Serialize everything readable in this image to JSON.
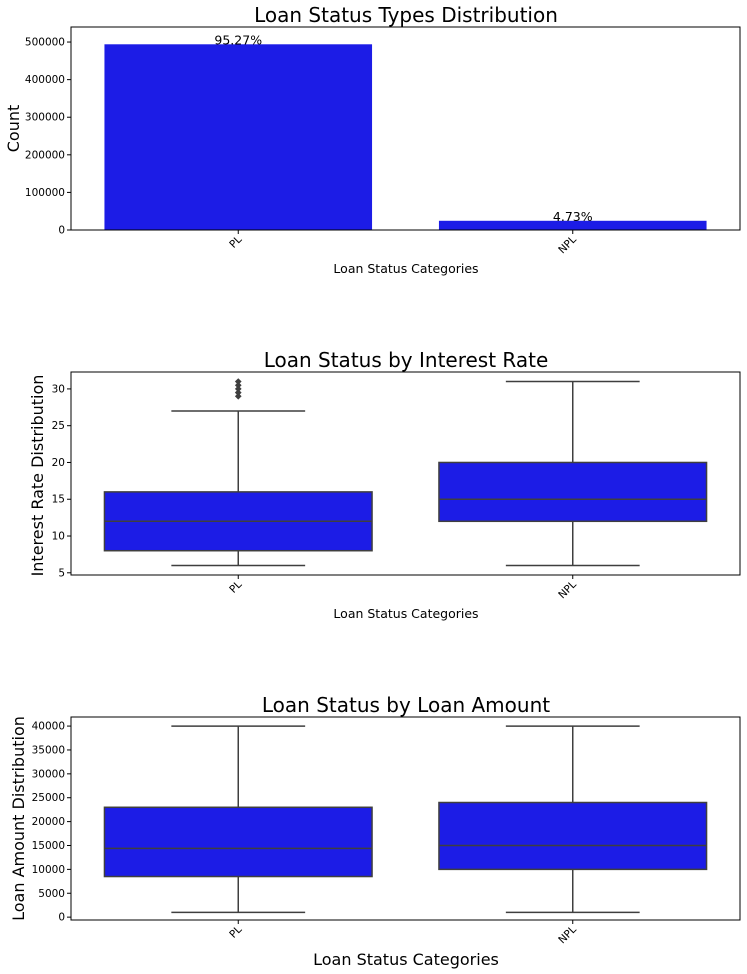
{
  "chart_data": [
    {
      "type": "bar",
      "title": "Loan Status Types Distribution",
      "xlabel": "Loan Status Categories",
      "ylabel": "Count",
      "categories": [
        "PL",
        "NPL"
      ],
      "values": [
        494000,
        24500
      ],
      "bar_labels": [
        "95.27%",
        "4.73%"
      ],
      "yticks": [
        0,
        100000,
        200000,
        300000,
        400000,
        500000
      ],
      "ylim": [
        0,
        540000
      ],
      "color": "#1c1ce6",
      "grid": false
    },
    {
      "type": "box",
      "title": "Loan Status by Interest Rate",
      "xlabel": "Loan Status Categories",
      "ylabel": "Interest Rate Distribution",
      "categories": [
        "PL",
        "NPL"
      ],
      "boxes": [
        {
          "min": 6,
          "q1": 8,
          "median": 12,
          "q3": 16,
          "max": 27,
          "outliers": [
            29,
            29.5,
            30,
            30.5,
            31
          ]
        },
        {
          "min": 6,
          "q1": 12,
          "median": 15,
          "q3": 20,
          "max": 31,
          "outliers": []
        }
      ],
      "yticks": [
        5,
        10,
        15,
        20,
        25,
        30
      ],
      "ylim": [
        4.7,
        32.3
      ],
      "color": "#1c1ce6",
      "grid": false
    },
    {
      "type": "box",
      "title": "Loan Status by Loan Amount",
      "xlabel": "Loan Status Categories",
      "ylabel": "Loan Amount Distribution",
      "categories": [
        "PL",
        "NPL"
      ],
      "boxes": [
        {
          "min": 1000,
          "q1": 8500,
          "median": 14400,
          "q3": 23000,
          "max": 40000,
          "outliers": []
        },
        {
          "min": 1000,
          "q1": 10000,
          "median": 15000,
          "q3": 24000,
          "max": 40000,
          "outliers": []
        }
      ],
      "yticks": [
        0,
        5000,
        10000,
        15000,
        20000,
        25000,
        30000,
        35000,
        40000
      ],
      "ylim": [
        -600,
        41900
      ],
      "color": "#1c1ce6",
      "grid": false
    }
  ]
}
